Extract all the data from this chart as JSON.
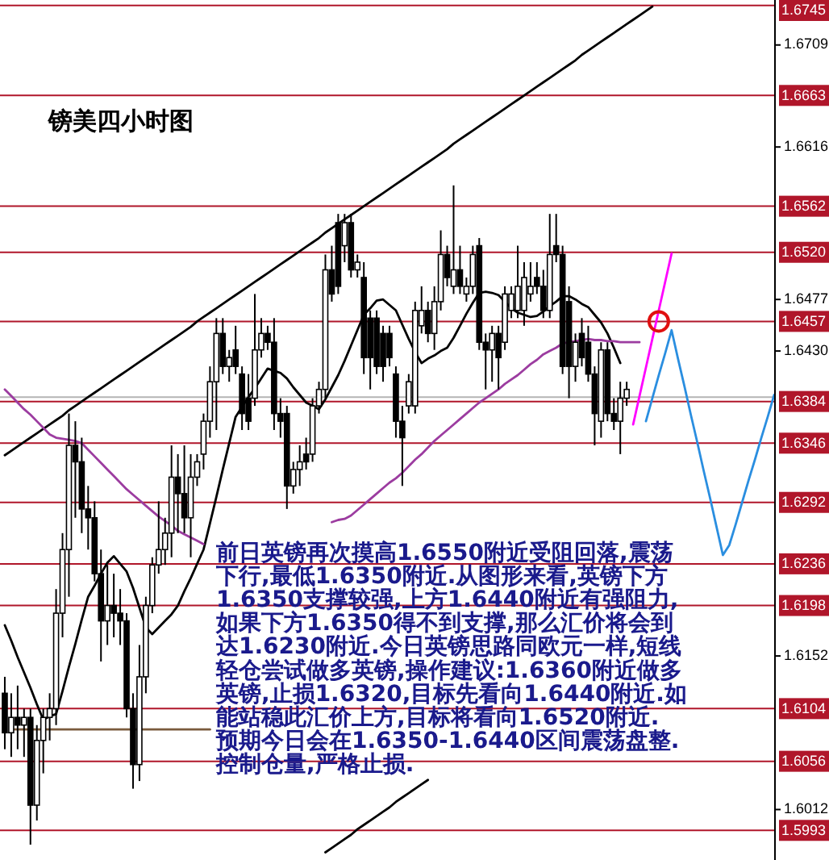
{
  "chart_data": {
    "type": "candlestick",
    "title": "镑美四小时图",
    "categories": [
      null,
      null,
      null,
      null,
      null,
      null,
      null,
      null,
      null,
      null,
      null,
      null,
      null,
      null,
      null,
      null,
      null,
      null,
      null,
      null,
      null,
      null,
      null,
      null,
      null,
      null,
      null,
      null,
      null,
      null,
      null,
      null,
      null,
      null,
      null,
      null,
      null,
      null,
      null,
      null,
      null,
      null,
      null,
      null,
      null,
      null,
      null,
      null,
      null,
      null,
      null,
      null,
      null,
      null,
      null,
      null,
      null,
      null,
      null,
      null,
      null,
      null,
      null,
      null,
      null,
      null,
      null,
      null,
      null,
      null,
      null,
      null,
      null,
      null,
      null,
      null,
      null,
      null,
      null,
      null,
      null,
      null,
      null,
      null,
      null,
      null,
      null,
      null,
      null,
      null,
      null,
      null,
      null,
      null,
      null,
      null,
      null,
      null,
      null,
      null,
      null,
      null,
      null,
      null,
      null,
      null,
      null,
      null,
      null,
      null,
      null,
      null,
      null,
      null,
      null,
      null,
      null,
      null,
      null,
      null,
      null
    ],
    "ohlc": [
      [
        1.6118,
        1.6133,
        1.6067,
        1.6082
      ],
      [
        1.6082,
        1.6118,
        1.606,
        1.6096
      ],
      [
        1.6096,
        1.6125,
        1.6067,
        1.6089
      ],
      [
        1.6089,
        1.6104,
        1.606,
        1.6096
      ],
      [
        1.6096,
        1.6104,
        1.598,
        1.6016
      ],
      [
        1.6016,
        1.6089,
        1.6002,
        1.6075
      ],
      [
        1.6075,
        1.6104,
        1.6045,
        1.6096
      ],
      [
        1.6096,
        1.6118,
        1.6075,
        1.6104
      ],
      [
        1.6104,
        1.6213,
        1.6089,
        1.6191
      ],
      [
        1.6191,
        1.6264,
        1.6169,
        1.6249
      ],
      [
        1.6249,
        1.6373,
        1.6206,
        1.6344
      ],
      [
        1.6344,
        1.6366,
        1.6278,
        1.6329
      ],
      [
        1.6329,
        1.6351,
        1.6264,
        1.6286
      ],
      [
        1.6286,
        1.6307,
        1.6249,
        1.6278
      ],
      [
        1.6278,
        1.6293,
        1.622,
        1.6227
      ],
      [
        1.6227,
        1.6249,
        1.6147,
        1.6184
      ],
      [
        1.6184,
        1.6235,
        1.6162,
        1.6198
      ],
      [
        1.6198,
        1.6227,
        1.6169,
        1.6191
      ],
      [
        1.6191,
        1.6213,
        1.6162,
        1.6184
      ],
      [
        1.6184,
        1.6191,
        1.6096,
        1.6104
      ],
      [
        1.6104,
        1.6118,
        1.6031,
        1.6053
      ],
      [
        1.6053,
        1.6162,
        1.6038,
        1.6133
      ],
      [
        1.6133,
        1.6206,
        1.6118,
        1.6198
      ],
      [
        1.6198,
        1.6242,
        1.6191,
        1.6235
      ],
      [
        1.6235,
        1.6293,
        1.6227,
        1.6249
      ],
      [
        1.6249,
        1.6278,
        1.6235,
        1.6264
      ],
      [
        1.6264,
        1.6344,
        1.6242,
        1.6315
      ],
      [
        1.6315,
        1.6336,
        1.6264,
        1.63
      ],
      [
        1.63,
        1.6344,
        1.6264,
        1.6278
      ],
      [
        1.6278,
        1.6336,
        1.6242,
        1.6315
      ],
      [
        1.6315,
        1.6336,
        1.6307,
        1.6329
      ],
      [
        1.6336,
        1.6373,
        1.6322,
        1.6366
      ],
      [
        1.6366,
        1.6416,
        1.6351,
        1.6402
      ],
      [
        1.6402,
        1.646,
        1.6358,
        1.6446
      ],
      [
        1.6446,
        1.646,
        1.6409,
        1.6416
      ],
      [
        1.6416,
        1.6431,
        1.6402,
        1.6424
      ],
      [
        1.6431,
        1.6453,
        1.6409,
        1.6416
      ],
      [
        1.6409,
        1.6416,
        1.6358,
        1.6373
      ],
      [
        1.6387,
        1.6409,
        1.6358,
        1.6366
      ],
      [
        1.6387,
        1.6482,
        1.638,
        1.6431
      ],
      [
        1.6431,
        1.646,
        1.6424,
        1.6446
      ],
      [
        1.6446,
        1.6453,
        1.6431,
        1.6438
      ],
      [
        1.6438,
        1.646,
        1.6358,
        1.6373
      ],
      [
        1.6373,
        1.6387,
        1.6351,
        1.6366
      ],
      [
        1.6373,
        1.638,
        1.6286,
        1.6307
      ],
      [
        1.6307,
        1.6329,
        1.63,
        1.6322
      ],
      [
        1.6322,
        1.6344,
        1.6307,
        1.6329
      ],
      [
        1.6336,
        1.6351,
        1.6322,
        1.6329
      ],
      [
        1.6336,
        1.6387,
        1.6329,
        1.638
      ],
      [
        1.638,
        1.6402,
        1.6373,
        1.6395
      ],
      [
        1.6395,
        1.6518,
        1.6387,
        1.6504
      ],
      [
        1.6504,
        1.6526,
        1.6475,
        1.6482
      ],
      [
        1.6547,
        1.6555,
        1.6482,
        1.6489
      ],
      [
        1.6526,
        1.6555,
        1.6511,
        1.6547
      ],
      [
        1.6547,
        1.6555,
        1.6497,
        1.6504
      ],
      [
        1.6504,
        1.6518,
        1.6497,
        1.6511
      ],
      [
        1.6497,
        1.6511,
        1.6409,
        1.6424
      ],
      [
        1.646,
        1.6467,
        1.6395,
        1.6424
      ],
      [
        1.646,
        1.6467,
        1.6409,
        1.6416
      ],
      [
        1.6446,
        1.6453,
        1.6402,
        1.6416
      ],
      [
        1.6446,
        1.6453,
        1.6416,
        1.6424
      ],
      [
        1.6409,
        1.6416,
        1.6351,
        1.6366
      ],
      [
        1.6366,
        1.638,
        1.6307,
        1.6351
      ],
      [
        1.638,
        1.6409,
        1.6373,
        1.6402
      ],
      [
        1.638,
        1.6475,
        1.6373,
        1.6467
      ],
      [
        1.6453,
        1.6489,
        1.6446,
        1.6467
      ],
      [
        1.6467,
        1.6475,
        1.6438,
        1.6446
      ],
      [
        1.6446,
        1.6489,
        1.6431,
        1.6475
      ],
      [
        1.6475,
        1.654,
        1.6467,
        1.6518
      ],
      [
        1.6518,
        1.6526,
        1.6489,
        1.6497
      ],
      [
        1.6489,
        1.6581,
        1.6482,
        1.6504
      ],
      [
        1.6504,
        1.6526,
        1.6482,
        1.6489
      ],
      [
        1.6482,
        1.6497,
        1.6475,
        1.6489
      ],
      [
        1.6489,
        1.6526,
        1.6482,
        1.6518
      ],
      [
        1.6526,
        1.6533,
        1.6431,
        1.6438
      ],
      [
        1.6438,
        1.6446,
        1.6395,
        1.6431
      ],
      [
        1.6431,
        1.6453,
        1.6402,
        1.6446
      ],
      [
        1.6446,
        1.6453,
        1.6395,
        1.6424
      ],
      [
        1.6438,
        1.6489,
        1.6431,
        1.6482
      ],
      [
        1.6467,
        1.6489,
        1.646,
        1.6482
      ],
      [
        1.6467,
        1.6526,
        1.646,
        1.6489
      ],
      [
        1.6467,
        1.6511,
        1.6453,
        1.6497
      ],
      [
        1.6482,
        1.6511,
        1.6475,
        1.6489
      ],
      [
        1.6497,
        1.6511,
        1.6482,
        1.6489
      ],
      [
        1.6489,
        1.6504,
        1.646,
        1.6467
      ],
      [
        1.6467,
        1.6555,
        1.646,
        1.6518
      ],
      [
        1.6526,
        1.6555,
        1.6511,
        1.6518
      ],
      [
        1.6518,
        1.6526,
        1.6409,
        1.6416
      ],
      [
        1.6475,
        1.6489,
        1.6387,
        1.6416
      ],
      [
        1.6416,
        1.6446,
        1.6402,
        1.6438
      ],
      [
        1.6446,
        1.646,
        1.6416,
        1.6424
      ],
      [
        1.6438,
        1.6453,
        1.6402,
        1.6409
      ],
      [
        1.6409,
        1.6416,
        1.6344,
        1.6373
      ],
      [
        1.6366,
        1.6438,
        1.6351,
        1.6431
      ],
      [
        1.6431,
        1.6438,
        1.6366,
        1.6373
      ],
      [
        1.6373,
        1.6387,
        1.6358,
        1.6366
      ],
      [
        1.6366,
        1.6402,
        1.6336,
        1.6387
      ],
      [
        1.6387,
        1.6402,
        1.638,
        1.6395
      ],
      null,
      null,
      null,
      null,
      null,
      null,
      null,
      null,
      null,
      null,
      null,
      null,
      null,
      null,
      null,
      null,
      null,
      null,
      null,
      null,
      null,
      null,
      null
    ],
    "ylim": [
      1.5966,
      1.675
    ],
    "yticks": [
      {
        "value": 1.6012,
        "label": "1.6012"
      },
      {
        "value": 1.6152,
        "label": "1.6152"
      },
      {
        "value": 1.643,
        "label": "1.6430"
      },
      {
        "value": 1.6477,
        "label": "1.6477"
      },
      {
        "value": 1.6616,
        "label": "1.6616"
      },
      {
        "value": 1.6709,
        "label": "1.6709"
      }
    ],
    "tick_labels": "y",
    "series": [
      {
        "type": "line",
        "color": "#000000",
        "values": [
          1.6335,
          1.6339,
          1.6343,
          1.6347,
          1.6351,
          1.6355,
          1.6359,
          1.6363,
          1.6367,
          1.6371,
          1.6376,
          1.638,
          1.6384,
          1.6388,
          1.6392,
          1.6396,
          1.64,
          1.6404,
          1.6408,
          1.6412,
          1.6416,
          1.642,
          1.6424,
          1.6428,
          1.6432,
          1.6436,
          1.644,
          1.6444,
          1.6448,
          1.6452,
          1.6457,
          1.6461,
          1.6465,
          1.6469,
          1.6473,
          1.6477,
          1.6481,
          1.6485,
          1.6489,
          1.6493,
          1.6497,
          1.6501,
          1.6505,
          1.6509,
          1.6513,
          1.6517,
          1.6521,
          1.6525,
          1.6529,
          1.6533,
          1.6538,
          1.6542,
          1.6546,
          1.655,
          1.6554,
          1.6558,
          1.6562,
          1.6566,
          1.657,
          1.6574,
          1.6578,
          1.6582,
          1.6586,
          1.659,
          1.6594,
          1.6598,
          1.6602,
          1.6606,
          1.661,
          1.6614,
          1.6619,
          1.6623,
          1.6627,
          1.6631,
          1.6635,
          1.6639,
          1.6643,
          1.6647,
          1.6651,
          1.6655,
          1.6659,
          1.6663,
          1.6667,
          1.6671,
          1.6675,
          1.6679,
          1.6683,
          1.6687,
          1.6691,
          1.6695,
          1.67,
          1.6704,
          1.6708,
          1.6712,
          1.6716,
          1.672,
          1.6724,
          1.6728,
          1.6732,
          1.6736,
          1.674,
          1.6744,
          null,
          null,
          null,
          null,
          null,
          null,
          null,
          null,
          null,
          null,
          null,
          null,
          null,
          null,
          null,
          null,
          null,
          null,
          null
        ]
      },
      {
        "type": "line",
        "color": "#000000",
        "values": [
          null,
          null,
          null,
          null,
          null,
          null,
          null,
          null,
          null,
          null,
          null,
          null,
          null,
          null,
          null,
          null,
          null,
          null,
          null,
          null,
          null,
          null,
          null,
          null,
          null,
          null,
          null,
          null,
          null,
          null,
          null,
          null,
          null,
          null,
          null,
          null,
          null,
          null,
          null,
          null,
          null,
          null,
          null,
          null,
          null,
          null,
          null,
          null,
          null,
          null,
          1.5973,
          1.5977,
          1.5981,
          1.5985,
          1.5989,
          1.5994,
          1.5998,
          1.6002,
          1.6006,
          1.601,
          1.6014,
          1.6019,
          1.6023,
          1.6027,
          1.6031,
          1.6035,
          1.6039,
          null,
          null,
          null,
          null,
          null,
          null,
          null,
          null,
          null,
          null,
          null,
          null,
          null,
          null,
          null,
          null,
          null,
          null,
          null,
          null,
          null,
          null,
          null,
          null,
          null,
          null,
          null,
          null,
          null,
          null,
          null,
          null,
          null,
          null,
          null,
          null,
          null,
          null,
          null,
          null,
          null,
          null,
          null,
          null,
          null,
          null,
          null,
          null,
          null,
          null,
          null,
          null,
          null,
          null
        ]
      },
      {
        "type": "line",
        "color": "#000000",
        "values": [
          1.618,
          1.6166,
          1.6151,
          1.6137,
          1.6123,
          1.6108,
          1.6094,
          1.6097,
          1.6099,
          1.612,
          1.6142,
          1.6163,
          1.6185,
          1.6206,
          1.6216,
          1.6227,
          1.6237,
          1.6243,
          1.6236,
          1.6229,
          1.6214,
          1.6196,
          1.6178,
          1.6172,
          1.6178,
          1.6184,
          1.619,
          1.6198,
          1.6211,
          1.6223,
          1.6236,
          1.6249,
          1.6273,
          1.6297,
          1.6322,
          1.6346,
          1.637,
          1.6379,
          1.6388,
          1.6396,
          1.6405,
          1.6414,
          1.6412,
          1.641,
          1.6405,
          1.6397,
          1.639,
          1.6383,
          1.638,
          1.6377,
          1.6386,
          1.6397,
          1.6408,
          1.6421,
          1.6435,
          1.6449,
          1.6463,
          1.6469,
          1.6476,
          1.6477,
          1.6472,
          1.6467,
          1.6454,
          1.6441,
          1.6429,
          1.6419,
          1.6423,
          1.6426,
          1.643,
          1.6433,
          1.6442,
          1.6453,
          1.6464,
          1.6474,
          1.6483,
          1.6484,
          1.6483,
          1.6481,
          1.6475,
          1.6469,
          1.6465,
          1.6463,
          1.6461,
          1.6462,
          1.6466,
          1.6471,
          1.6475,
          1.648,
          1.648,
          1.6477,
          1.6473,
          1.647,
          1.6463,
          1.6456,
          1.6446,
          1.6433,
          1.6419,
          null,
          null,
          null,
          null,
          null,
          null,
          null,
          null,
          null,
          null,
          null,
          null,
          null,
          null,
          null,
          null,
          null,
          null,
          null,
          null,
          null,
          null,
          null,
          null
        ]
      },
      {
        "type": "line",
        "color": "#9c3ca0",
        "values": [
          1.6395,
          1.6389,
          1.6383,
          1.6377,
          1.6372,
          1.6366,
          1.636,
          1.6354,
          1.6351,
          1.635,
          1.6349,
          1.6348,
          1.6346,
          1.634,
          1.6334,
          1.6328,
          1.6322,
          1.6316,
          1.631,
          1.6304,
          1.6299,
          1.6294,
          1.6289,
          1.6284,
          1.6279,
          1.6275,
          1.6271,
          1.6266,
          1.6263,
          1.626,
          1.6257,
          1.6254,
          null,
          null,
          null,
          null,
          null,
          null,
          null,
          null,
          null,
          null,
          null,
          null,
          null,
          null,
          null,
          null,
          null,
          null,
          null,
          1.6274,
          1.6276,
          1.6277,
          1.628,
          1.6285,
          1.629,
          1.6295,
          1.63,
          1.6305,
          1.631,
          1.6314,
          1.6319,
          1.6325,
          1.6331,
          1.6336,
          1.6342,
          1.6348,
          1.6353,
          1.6358,
          1.6363,
          1.6368,
          1.6373,
          1.6378,
          1.6383,
          1.6387,
          1.6391,
          1.6395,
          1.64,
          1.6404,
          1.6408,
          1.6413,
          1.6418,
          1.6422,
          1.6427,
          1.643,
          1.6433,
          1.6437,
          1.6438,
          1.6439,
          1.644,
          1.6441,
          1.644,
          1.644,
          1.6439,
          1.6439,
          1.6438,
          1.6438,
          1.6438,
          1.6438,
          null,
          null,
          null,
          null,
          null,
          null,
          null,
          null,
          null,
          null,
          null,
          null,
          null,
          null,
          null,
          null,
          null,
          null,
          null,
          null,
          null
        ]
      },
      {
        "type": "line",
        "color": "#7a5a3c",
        "values": [
          null,
          1.6085,
          1.6085,
          1.6085,
          1.6085,
          1.6085,
          1.6085,
          1.6085,
          1.6085,
          1.6085,
          1.6085,
          1.6085,
          1.6085,
          1.6085,
          1.6085,
          1.6085,
          1.6085,
          1.6085,
          1.6085,
          1.6085,
          1.6085,
          1.6085,
          1.6085,
          1.6085,
          1.6085,
          1.6085,
          1.6085,
          1.6085,
          1.6085,
          1.6085,
          1.6085,
          1.6085,
          1.6085,
          null,
          null,
          null,
          null,
          null,
          null,
          null,
          null,
          null,
          null,
          null,
          null,
          null,
          null,
          null,
          null,
          null,
          null,
          null,
          null,
          null,
          null,
          null,
          null,
          null,
          null,
          null,
          null,
          null,
          null,
          null,
          null,
          null,
          null,
          null,
          null,
          null,
          null,
          null,
          null,
          null,
          null,
          null,
          null,
          null,
          null,
          null,
          null,
          null,
          null,
          null,
          null,
          null,
          null,
          null,
          null,
          null,
          null,
          null,
          null,
          null,
          null,
          null,
          null,
          null,
          null,
          null,
          null,
          null,
          null,
          null,
          null,
          null,
          null,
          null,
          null,
          null,
          null,
          null,
          null,
          null,
          null,
          null,
          null,
          null,
          null,
          null,
          null
        ]
      },
      {
        "type": "line",
        "color": "#ff00ff",
        "values": [
          null,
          null,
          null,
          null,
          null,
          null,
          null,
          null,
          null,
          null,
          null,
          null,
          null,
          null,
          null,
          null,
          null,
          null,
          null,
          null,
          null,
          null,
          null,
          null,
          null,
          null,
          null,
          null,
          null,
          null,
          null,
          null,
          null,
          null,
          null,
          null,
          null,
          null,
          null,
          null,
          null,
          null,
          null,
          null,
          null,
          null,
          null,
          null,
          null,
          null,
          null,
          null,
          null,
          null,
          null,
          null,
          null,
          null,
          null,
          null,
          null,
          null,
          null,
          null,
          null,
          null,
          null,
          null,
          null,
          null,
          null,
          null,
          null,
          null,
          null,
          null,
          null,
          null,
          null,
          null,
          null,
          null,
          null,
          null,
          null,
          null,
          null,
          null,
          null,
          null,
          null,
          null,
          null,
          null,
          null,
          null,
          null,
          null,
          1.6363,
          1.6389,
          1.6415,
          1.6441,
          1.6467,
          1.6493,
          1.6519,
          null,
          null,
          null,
          null,
          null,
          null,
          null,
          null,
          null,
          null,
          null,
          null,
          null,
          null,
          null,
          null
        ]
      },
      {
        "type": "line",
        "color": "#2a8ee0",
        "values": [
          null,
          null,
          null,
          null,
          null,
          null,
          null,
          null,
          null,
          null,
          null,
          null,
          null,
          null,
          null,
          null,
          null,
          null,
          null,
          null,
          null,
          null,
          null,
          null,
          null,
          null,
          null,
          null,
          null,
          null,
          null,
          null,
          null,
          null,
          null,
          null,
          null,
          null,
          null,
          null,
          null,
          null,
          null,
          null,
          null,
          null,
          null,
          null,
          null,
          null,
          null,
          null,
          null,
          null,
          null,
          null,
          null,
          null,
          null,
          null,
          null,
          null,
          null,
          null,
          null,
          null,
          null,
          null,
          null,
          null,
          null,
          null,
          null,
          null,
          null,
          null,
          null,
          null,
          null,
          null,
          null,
          null,
          null,
          null,
          null,
          null,
          null,
          null,
          null,
          null,
          null,
          null,
          null,
          null,
          null,
          null,
          null,
          null,
          null,
          null,
          1.6366,
          1.6387,
          1.6408,
          1.6428,
          1.6449,
          1.6423,
          1.6398,
          1.6372,
          1.6347,
          1.6321,
          1.6296,
          1.627,
          1.6244,
          1.6253,
          1.6272,
          1.6292,
          1.6312,
          1.6331,
          1.6351,
          1.637,
          1.639
        ]
      },
      {
        "type": "scatter",
        "marker": "circle",
        "color": "#e01010",
        "values": [
          null,
          null,
          null,
          null,
          null,
          null,
          null,
          null,
          null,
          null,
          null,
          null,
          null,
          null,
          null,
          null,
          null,
          null,
          null,
          null,
          null,
          null,
          null,
          null,
          null,
          null,
          null,
          null,
          null,
          null,
          null,
          null,
          null,
          null,
          null,
          null,
          null,
          null,
          null,
          null,
          null,
          null,
          null,
          null,
          null,
          null,
          null,
          null,
          null,
          null,
          null,
          null,
          null,
          null,
          null,
          null,
          null,
          null,
          null,
          null,
          null,
          null,
          null,
          null,
          null,
          null,
          null,
          null,
          null,
          null,
          null,
          null,
          null,
          null,
          null,
          null,
          null,
          null,
          null,
          null,
          null,
          null,
          null,
          null,
          null,
          null,
          null,
          null,
          null,
          null,
          null,
          null,
          null,
          null,
          null,
          null,
          null,
          null,
          null,
          null,
          null,
          null,
          1.6457,
          null,
          null,
          null,
          null,
          null,
          null,
          null,
          null,
          null,
          null,
          null,
          null,
          null,
          null,
          null,
          null,
          null,
          null
        ]
      }
    ],
    "ref_lines": [
      {
        "axis": "y",
        "value": 1.6745,
        "label": "1.6745",
        "color": "#b0162a"
      },
      {
        "axis": "y",
        "value": 1.6663,
        "label": "1.6663",
        "color": "#b0162a"
      },
      {
        "axis": "y",
        "value": 1.6562,
        "label": "1.6562",
        "color": "#b0162a"
      },
      {
        "axis": "y",
        "value": 1.652,
        "label": "1.6520",
        "color": "#b0162a"
      },
      {
        "axis": "y",
        "value": 1.6457,
        "label": "1.6457",
        "color": "#b0162a"
      },
      {
        "axis": "y",
        "value": 1.6388,
        "color": "#b4b4b4"
      },
      {
        "axis": "y",
        "value": 1.6384,
        "label": "1.6384",
        "color": "#b0162a"
      },
      {
        "axis": "y",
        "value": 1.6346,
        "label": "1.6346",
        "color": "#b0162a"
      },
      {
        "axis": "y",
        "value": 1.6292,
        "label": "1.6292",
        "color": "#b0162a"
      },
      {
        "axis": "y",
        "value": 1.6236,
        "label": "1.6236",
        "color": "#b0162a"
      },
      {
        "axis": "y",
        "value": 1.6198,
        "label": "1.6198",
        "color": "#b0162a"
      },
      {
        "axis": "y",
        "value": 1.6104,
        "label": "1.6104",
        "color": "#b0162a"
      },
      {
        "axis": "y",
        "value": 1.6056,
        "label": "1.6056",
        "color": "#b0162a"
      },
      {
        "axis": "y",
        "value": 1.5993,
        "label": "1.5993",
        "color": "#b0162a"
      }
    ],
    "annotations": [
      "前日英镑再次摸高1.6550附近受阻回落,震荡",
      "下行,最低1.6350附近.从图形来看,英镑下方",
      "1.6350支撑较强,上方1.6440附近有强阻力,",
      "如果下方1.6350得不到支撑,那么汇价将会到",
      "达1.6230附近.今日英镑思路同欧元一样,短线",
      "轻仓尝试做多英镑,操作建议:1.6360附近做多",
      "英镑,止损1.6320,目标先看向1.6440附近.如",
      "能站稳此汇价上方,目标将看向1.6520附近.",
      "预期今日会在1.6350-1.6440区间震荡盘整.",
      "控制仓量,严格止损."
    ]
  }
}
